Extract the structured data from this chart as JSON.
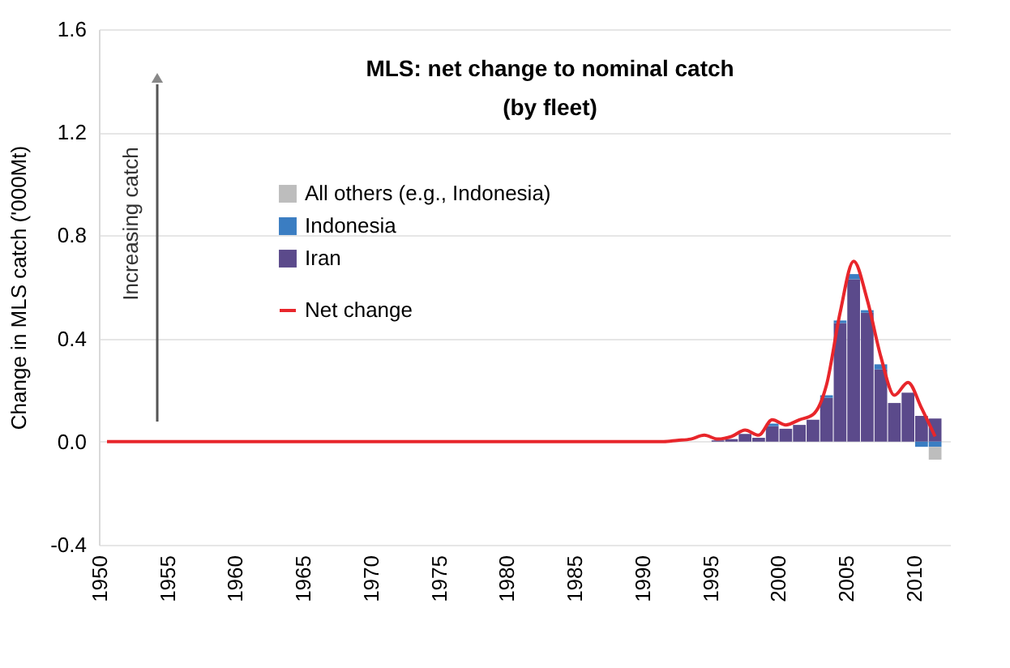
{
  "chart_data": {
    "type": "bar",
    "stacked": true,
    "title": "MLS: net change to nominal catch\n(by fleet)",
    "ylabel": "Change in MLS catch ('000Mt)",
    "annotations": [
      "Increasing catch"
    ],
    "x": [
      1950,
      1951,
      1952,
      1953,
      1954,
      1955,
      1956,
      1957,
      1958,
      1959,
      1960,
      1961,
      1962,
      1963,
      1964,
      1965,
      1966,
      1967,
      1968,
      1969,
      1970,
      1971,
      1972,
      1973,
      1974,
      1975,
      1976,
      1977,
      1978,
      1979,
      1980,
      1981,
      1982,
      1983,
      1984,
      1985,
      1986,
      1987,
      1988,
      1989,
      1990,
      1991,
      1992,
      1993,
      1994,
      1995,
      1996,
      1997,
      1998,
      1999,
      2000,
      2001,
      2002,
      2003,
      2004,
      2005,
      2006,
      2007,
      2008,
      2009,
      2010,
      2011
    ],
    "xlim": [
      1950,
      2011.5
    ],
    "xticks": [
      1950,
      1955,
      1960,
      1965,
      1970,
      1975,
      1980,
      1985,
      1990,
      1995,
      2000,
      2005,
      2010
    ],
    "ylim": [
      -0.4,
      1.6
    ],
    "yticks": [
      {
        "value": -0.4,
        "label": "-0.4"
      },
      {
        "value": 0,
        "label": "0.0"
      },
      {
        "value": 0.4,
        "label": "0.4"
      },
      {
        "value": 0.8,
        "label": "0.8"
      },
      {
        "value": 1.2,
        "label": "1.2"
      },
      {
        "value": 1.6,
        "label": "1.6"
      }
    ],
    "grid": "y",
    "legend": "left",
    "series": [
      {
        "name": "Iran",
        "color": "#5b4a8b",
        "values": [
          null,
          null,
          null,
          null,
          null,
          null,
          null,
          null,
          null,
          null,
          null,
          null,
          null,
          null,
          null,
          null,
          null,
          null,
          null,
          null,
          null,
          null,
          null,
          null,
          null,
          null,
          null,
          null,
          null,
          null,
          null,
          null,
          null,
          null,
          null,
          null,
          null,
          null,
          null,
          null,
          null,
          null,
          null,
          null,
          null,
          0.005,
          0.01,
          0.03,
          0.015,
          0.06,
          0.05,
          0.065,
          0.085,
          0.17,
          0.46,
          0.63,
          0.5,
          0.28,
          0.15,
          0.19,
          0.1,
          0.09
        ]
      },
      {
        "name": "Indonesia",
        "color": "#3a7dc2",
        "values": [
          null,
          null,
          null,
          null,
          null,
          null,
          null,
          null,
          null,
          null,
          null,
          null,
          null,
          null,
          null,
          null,
          null,
          null,
          null,
          null,
          null,
          null,
          null,
          null,
          null,
          null,
          null,
          null,
          null,
          null,
          null,
          null,
          null,
          null,
          null,
          null,
          null,
          null,
          null,
          null,
          null,
          null,
          null,
          null,
          null,
          null,
          null,
          null,
          null,
          0.01,
          null,
          null,
          null,
          0.01,
          0.01,
          0.02,
          0.01,
          0.02,
          null,
          null,
          -0.02,
          -0.02
        ]
      },
      {
        "name": "All others (e.g., Indonesia)",
        "color": "#bdbdbd",
        "values": [
          null,
          null,
          null,
          null,
          null,
          null,
          null,
          null,
          null,
          null,
          null,
          null,
          null,
          null,
          null,
          null,
          null,
          null,
          null,
          null,
          null,
          null,
          null,
          null,
          null,
          null,
          null,
          null,
          null,
          null,
          null,
          null,
          null,
          null,
          null,
          null,
          null,
          null,
          null,
          null,
          null,
          null,
          null,
          null,
          null,
          null,
          null,
          null,
          null,
          null,
          null,
          null,
          null,
          null,
          null,
          null,
          null,
          null,
          null,
          null,
          null,
          -0.05
        ]
      },
      {
        "name": "Net change",
        "type": "line",
        "color": "#e8262b",
        "marker": "none",
        "values": [
          0,
          0,
          0,
          0,
          0,
          0,
          0,
          0,
          0,
          0,
          0,
          0,
          0,
          0,
          0,
          0,
          0,
          0,
          0,
          0,
          0,
          0,
          0,
          0,
          0,
          0,
          0,
          0,
          0,
          0,
          0,
          0,
          0,
          0,
          0,
          0,
          0,
          0,
          0,
          0,
          0,
          0,
          0.005,
          0.01,
          0.025,
          0.01,
          0.02,
          0.045,
          0.025,
          0.085,
          0.065,
          0.085,
          0.105,
          0.22,
          0.5,
          0.7,
          0.55,
          0.33,
          0.18,
          0.23,
          0.13,
          0.02
        ]
      }
    ]
  }
}
